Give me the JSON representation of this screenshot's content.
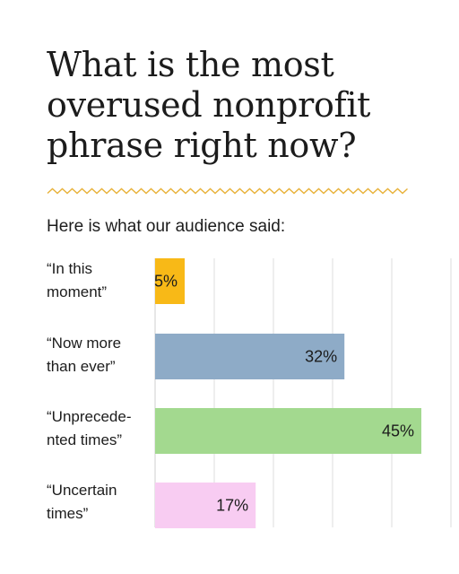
{
  "title": {
    "lines": [
      "What is the most",
      "overused nonprofit",
      "phrase right now?"
    ]
  },
  "subtitle": "Here is what our audience said:",
  "colors": {
    "accent_zigzag": "#e8b23a",
    "grid": "#dedede",
    "axis": "#cfcfcf"
  },
  "chart_data": {
    "type": "bar",
    "orientation": "horizontal",
    "categories": [
      {
        "lines": [
          "“In this",
          "moment”"
        ]
      },
      {
        "lines": [
          "“Now more",
          "than ever”"
        ]
      },
      {
        "lines": [
          "“Unprecede-",
          "nted times”"
        ]
      },
      {
        "lines": [
          "“Uncertain",
          "times”"
        ]
      }
    ],
    "values": [
      5,
      32,
      45,
      17
    ],
    "value_labels": [
      "5%",
      "32%",
      "45%",
      "17%"
    ],
    "bar_colors": [
      "#f8b917",
      "#8eabc7",
      "#a3d98f",
      "#f8ccf2"
    ],
    "xlim": [
      0,
      50
    ],
    "grid": true,
    "unit": "%"
  }
}
